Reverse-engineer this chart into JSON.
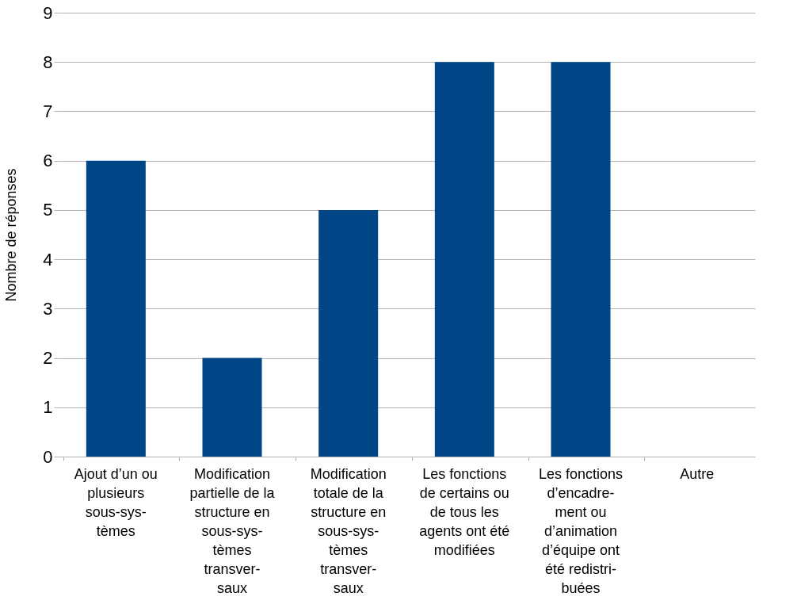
{
  "chart_data": {
    "type": "bar",
    "ylabel": "Nombre de réponses",
    "categories": [
      "Ajout d’un ou\nplusieurs\nsous-sys-\ntèmes",
      "Modification\npartielle de la\nstructure en\nsous-sys-\ntèmes\ntransver-\nsaux",
      "Modification\ntotale de la\nstructure en\nsous-sys-\ntèmes\ntransver-\nsaux",
      "Les fonctions\nde certains ou\nde tous les\nagents ont été\nmodifiées",
      "Les fonctions\nd’encadre-\nment ou\nd’animation\nd’équipe ont\nété redistri-\nbuées",
      "Autre"
    ],
    "values": [
      6,
      2,
      5,
      8,
      8,
      0
    ],
    "color": "#004586",
    "ylim": [
      0,
      9
    ],
    "yticks": [
      0,
      1,
      2,
      3,
      4,
      5,
      6,
      7,
      8,
      9
    ],
    "grid": "y"
  }
}
